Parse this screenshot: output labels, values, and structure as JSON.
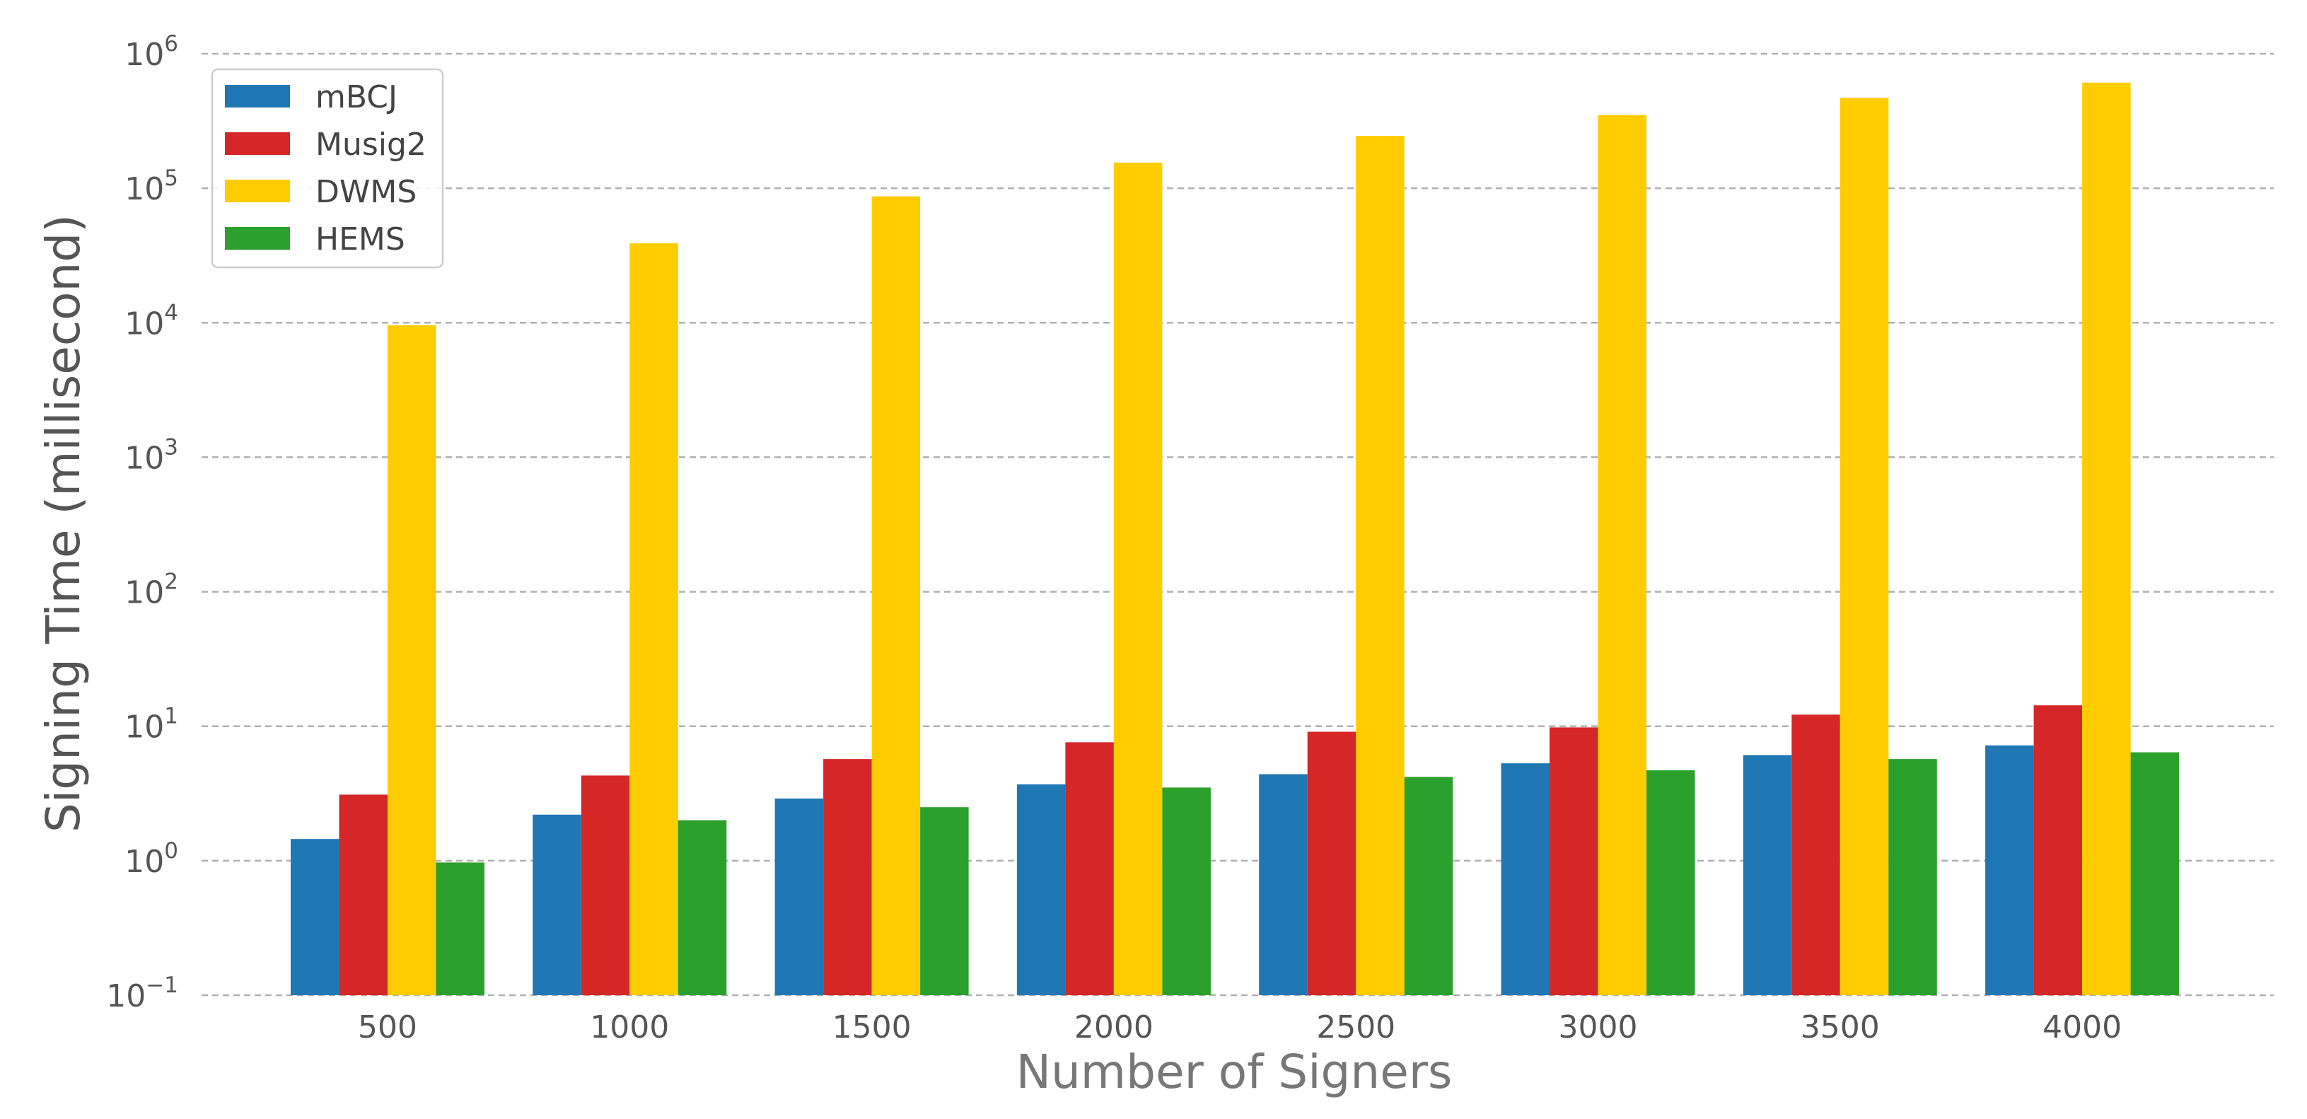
{
  "chart_data": {
    "type": "bar",
    "title": "",
    "xlabel": "Number of Signers",
    "ylabel": "Signing Time (millisecond)",
    "yscale": "log",
    "ylim": [
      0.1,
      1000000
    ],
    "grid": "horizontal dashed",
    "legend_position": "top-left",
    "categories": [
      "500",
      "1000",
      "1500",
      "2000",
      "2500",
      "3000",
      "3500",
      "4000"
    ],
    "y_ticks": [
      {
        "base": "10",
        "exp": "−1"
      },
      {
        "base": "10",
        "exp": "0"
      },
      {
        "base": "10",
        "exp": "1"
      },
      {
        "base": "10",
        "exp": "2"
      },
      {
        "base": "10",
        "exp": "3"
      },
      {
        "base": "10",
        "exp": "4"
      },
      {
        "base": "10",
        "exp": "5"
      },
      {
        "base": "10",
        "exp": "6"
      }
    ],
    "series": [
      {
        "name": "mBCJ",
        "color": "#1f77b4",
        "values": [
          1.45,
          2.2,
          2.9,
          3.7,
          4.4,
          5.3,
          6.1,
          7.2
        ]
      },
      {
        "name": "Musig2",
        "color": "#d62728",
        "values": [
          3.1,
          4.3,
          5.7,
          7.6,
          9.1,
          9.8,
          12.2,
          14.3
        ]
      },
      {
        "name": "DWMS",
        "color": "#ffcc00",
        "values": [
          9600,
          39000,
          87000,
          155000,
          245000,
          350000,
          470000,
          610000
        ]
      },
      {
        "name": "HEMS",
        "color": "#2ca02c",
        "values": [
          0.97,
          2.0,
          2.5,
          3.5,
          4.2,
          4.7,
          5.7,
          6.4
        ]
      }
    ]
  }
}
